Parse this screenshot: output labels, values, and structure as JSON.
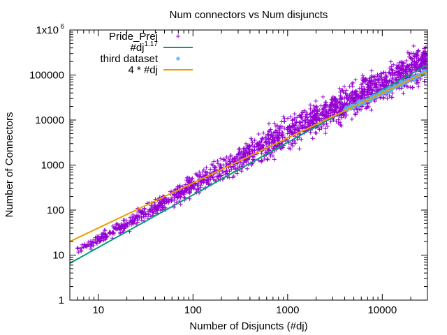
{
  "chart_data": {
    "type": "scatter",
    "title": "Num connectors vs Num disjuncts",
    "xlabel": "Number of Disjuncts (#dj)",
    "ylabel": "Number of Connectors",
    "xscale": "log",
    "yscale": "log",
    "xlim": [
      5,
      30000
    ],
    "ylim": [
      1,
      1000000
    ],
    "grid": false,
    "legend_position": "top-left",
    "x_ticks": [
      {
        "value": 10,
        "label": "10"
      },
      {
        "value": 100,
        "label": "100"
      },
      {
        "value": 1000,
        "label": "1000"
      },
      {
        "value": 10000,
        "label": "10000"
      }
    ],
    "y_ticks": [
      {
        "value": 1,
        "label": "1"
      },
      {
        "value": 10,
        "label": "10"
      },
      {
        "value": 100,
        "label": "100"
      },
      {
        "value": 1000,
        "label": "1000"
      },
      {
        "value": 10000,
        "label": "10000"
      },
      {
        "value": 100000,
        "label": "100000"
      },
      {
        "value": 1000000,
        "label": "1x10",
        "label_sup": "6"
      }
    ],
    "series": [
      {
        "name": "Pride_Prej",
        "kind": "points",
        "marker": "+",
        "color": "#9400d3",
        "x": [
          6,
          7,
          8,
          9,
          10,
          11,
          12,
          14,
          16,
          18,
          20,
          23,
          26,
          30,
          35,
          40,
          45,
          50,
          60,
          70,
          80,
          90,
          100,
          120,
          140,
          170,
          200,
          250,
          300,
          350,
          400,
          500,
          600,
          700,
          800,
          1000,
          1200,
          1500,
          1800,
          2000,
          2500,
          3000,
          3500,
          4000,
          5000,
          6000,
          7000,
          8000,
          10000,
          12000,
          15000,
          18000,
          22000,
          26000,
          29000
        ],
        "y": [
          14,
          15,
          17,
          19,
          22,
          25,
          28,
          32,
          38,
          43,
          50,
          58,
          68,
          80,
          95,
          115,
          130,
          150,
          190,
          230,
          270,
          310,
          360,
          450,
          540,
          680,
          820,
          1050,
          1300,
          1550,
          1800,
          2300,
          2900,
          3400,
          3900,
          5000,
          6100,
          7800,
          9500,
          10500,
          13500,
          16500,
          19500,
          22500,
          29000,
          35000,
          42000,
          48000,
          62000,
          76000,
          98000,
          120000,
          150000,
          180000,
          200000
        ]
      },
      {
        "name": "#dj",
        "name_sup": "1.17",
        "kind": "line",
        "color": "#009e73",
        "x": [
          5,
          30000
        ],
        "y": [
          6.6,
          168000
        ]
      },
      {
        "name": "third dataset",
        "kind": "points",
        "marker": "*",
        "color": "#56b4e9",
        "x": [
          4000,
          5000,
          6000,
          7000,
          8000,
          10000,
          12000,
          15000,
          18000,
          22000,
          26000,
          29000
        ],
        "y": [
          16500,
          20000,
          24000,
          28000,
          32000,
          40000,
          48000,
          60000,
          72000,
          88000,
          104000,
          116000
        ]
      },
      {
        "name": "4 * #dj",
        "kind": "line",
        "color": "#e69f00",
        "x": [
          5,
          30000
        ],
        "y": [
          20,
          120000
        ]
      }
    ]
  }
}
